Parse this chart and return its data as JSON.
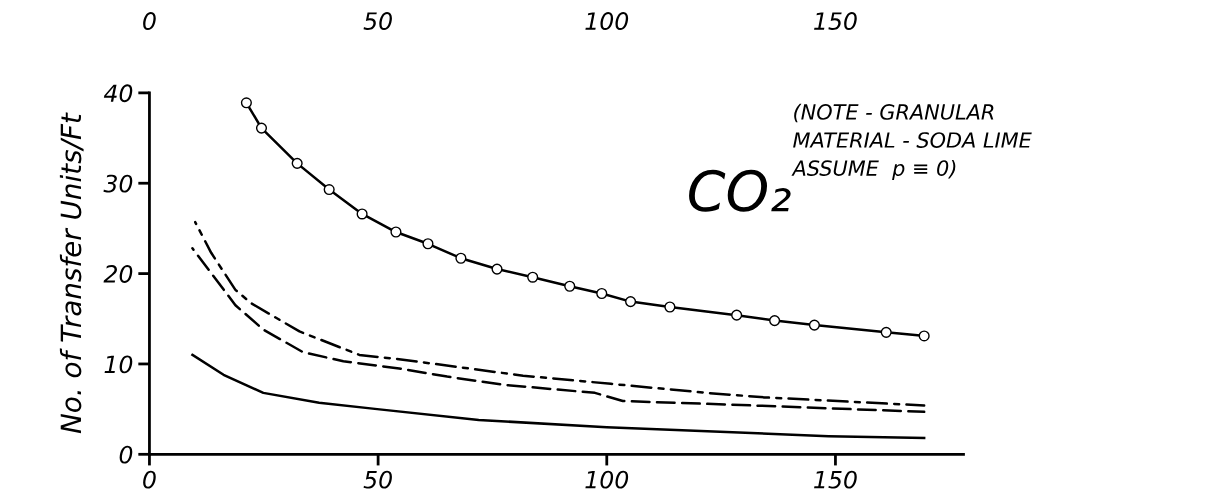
{
  "chart_data": {
    "type": "line",
    "ylabel": "No. of Transfer Units/Ft",
    "xlim": [
      0,
      178
    ],
    "xticks": [
      0,
      50,
      100,
      150
    ],
    "x2lim": [
      0,
      178
    ],
    "x2ticks": [
      0,
      50,
      100,
      150
    ],
    "ylim": [
      0,
      40
    ],
    "yticks": [
      0,
      10,
      20,
      30,
      40
    ],
    "grid": false,
    "legend": false,
    "annotations": [
      "CO₂",
      "(NOTE - GRANULAR\nMATERIAL - SODA LIME\nASSUME  p ≡ 0)"
    ],
    "series": [
      {
        "color": "#000000",
        "marker": "circle",
        "line_style": "solid",
        "x": [
          21.2,
          24.5,
          32.3,
          39.3,
          46.5,
          53.9,
          60.9,
          68.1,
          76,
          83.8,
          91.9,
          98.9,
          105.2,
          113.8,
          128.4,
          136.7,
          145.4,
          161.1,
          169.4
        ],
        "values": [
          38.9,
          36.1,
          32.2,
          29.3,
          26.6,
          24.6,
          23.3,
          21.7,
          20.5,
          19.6,
          18.6,
          17.8,
          16.9,
          16.3,
          15.4,
          14.8,
          14.3,
          13.5,
          13.1
        ]
      },
      {
        "color": "#000000",
        "marker": "none",
        "line_style": "dashdot",
        "x": [
          10,
          13.5,
          18.8,
          22.3,
          32.8,
          45.9,
          55,
          81.7,
          100.9,
          121.8,
          134.5,
          169.4
        ],
        "values": [
          25.7,
          22.3,
          18.2,
          16.7,
          13.6,
          11.0,
          10.5,
          8.7,
          7.8,
          6.8,
          6.3,
          5.4
        ]
      },
      {
        "color": "#000000",
        "marker": "none",
        "line_style": "dashed",
        "x": [
          9.4,
          18.8,
          24.9,
          33.6,
          42.4,
          54.6,
          65.1,
          77.3,
          97.4,
          103.5,
          127,
          169.4
        ],
        "values": [
          22.8,
          16.5,
          13.8,
          11.3,
          10.3,
          9.5,
          8.6,
          7.7,
          6.8,
          5.9,
          5.5,
          4.7
        ]
      },
      {
        "color": "#000000",
        "marker": "none",
        "line_style": "solid",
        "x": [
          9.4,
          16.2,
          24.9,
          37.1,
          49.8,
          72,
          100,
          148.5,
          169.4
        ],
        "values": [
          11.0,
          8.8,
          6.8,
          5.7,
          5.0,
          3.8,
          3.0,
          2.0,
          1.8
        ]
      }
    ]
  }
}
